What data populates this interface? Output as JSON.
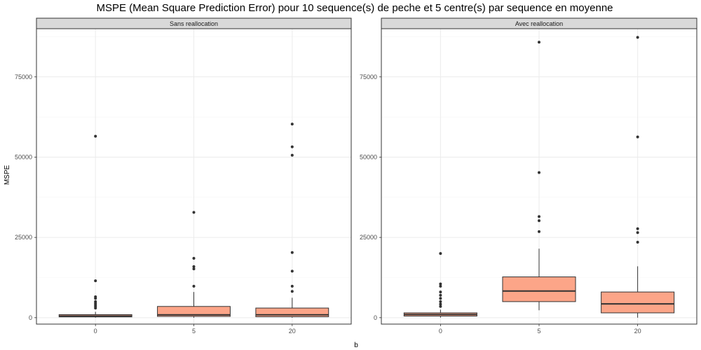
{
  "chart_data": {
    "type": "boxplot",
    "title": "MSPE (Mean Square Prediction Error) pour 10 sequence(s) de peche et 5 centre(s) par sequence en moyenne",
    "xlabel": "b",
    "ylabel": "MSPE",
    "categories": [
      "0",
      "5",
      "20"
    ],
    "ylim": [
      -2000,
      90000
    ],
    "yticks": [
      0,
      25000,
      50000,
      75000
    ],
    "grid": true,
    "colors": {
      "box_fill": "#fca588",
      "box_line": "#333333",
      "strip_fill": "#d9d9d9",
      "panel_border": "#333333",
      "grid_major": "#ebebeb",
      "grid_minor": "#f5f5f5"
    },
    "panels": [
      {
        "label": "Sans reallocation",
        "boxes": [
          {
            "category": "0",
            "q1": 250,
            "median": 500,
            "q3": 950,
            "whisker_low": 0,
            "whisker_high": 1800,
            "outliers": [
              3000,
              3500,
              4000,
              4500,
              5000,
              6000,
              6500,
              11500,
              56500
            ]
          },
          {
            "category": "5",
            "q1": 400,
            "median": 900,
            "q3": 3500,
            "whisker_low": 0,
            "whisker_high": 8000,
            "outliers": [
              9800,
              15200,
              15900,
              18500,
              32800
            ]
          },
          {
            "category": "20",
            "q1": 300,
            "median": 900,
            "q3": 3000,
            "whisker_low": 0,
            "whisker_high": 6200,
            "outliers": [
              8200,
              9800,
              14500,
              20300,
              50600,
              53200,
              60300
            ]
          }
        ]
      },
      {
        "label": "Avec reallocation",
        "boxes": [
          {
            "category": "0",
            "q1": 500,
            "median": 1000,
            "q3": 1500,
            "whisker_low": 0,
            "whisker_high": 2500,
            "outliers": [
              3500,
              4200,
              5000,
              6000,
              7000,
              8000,
              9800,
              10500,
              20000
            ]
          },
          {
            "category": "5",
            "q1": 5000,
            "median": 8300,
            "q3": 12700,
            "whisker_low": 2300,
            "whisker_high": 21500,
            "outliers": [
              26800,
              30200,
              31500,
              45200,
              85800
            ]
          },
          {
            "category": "20",
            "q1": 1500,
            "median": 4300,
            "q3": 8000,
            "whisker_low": 0,
            "whisker_high": 16000,
            "outliers": [
              23500,
              26500,
              27700,
              56300,
              87300
            ]
          }
        ]
      }
    ]
  }
}
